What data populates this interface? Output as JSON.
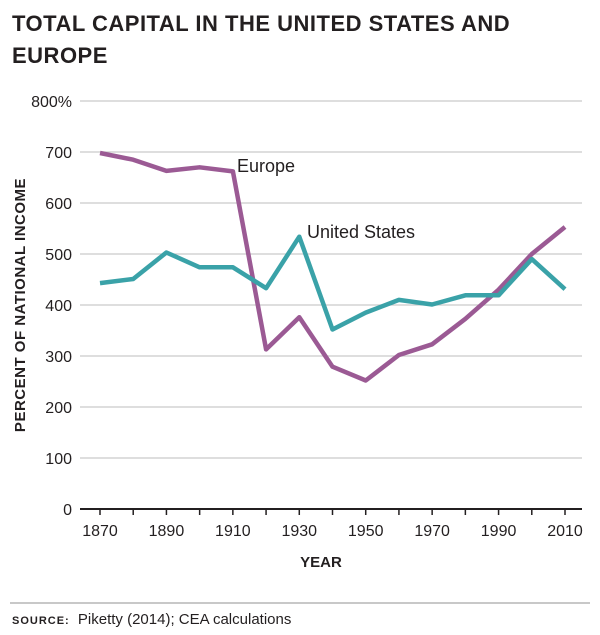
{
  "title": "TOTAL CAPITAL IN THE UNITED STATES AND EUROPE",
  "source_label": "SOURCE:",
  "source_text": "Piketty (2014); CEA calculations",
  "chart_data": {
    "type": "line",
    "title": "TOTAL CAPITAL IN THE UNITED STATES AND EUROPE",
    "xlabel": "YEAR",
    "ylabel": "PERCENT OF NATIONAL INCOME",
    "x": [
      1870,
      1880,
      1890,
      1900,
      1910,
      1920,
      1930,
      1940,
      1950,
      1960,
      1970,
      1980,
      1990,
      2000,
      2010
    ],
    "xticks": [
      "1870",
      "1890",
      "1910",
      "1930",
      "1950",
      "1970",
      "1990",
      "2010"
    ],
    "xlim": [
      1870,
      2010
    ],
    "ylim": [
      0,
      800
    ],
    "yticks": [
      "0",
      "100",
      "200",
      "300",
      "400",
      "500",
      "600",
      "700",
      "800%"
    ],
    "grid": true,
    "series": [
      {
        "name": "Europe",
        "color": "#9b5a94",
        "values": [
          698,
          685,
          663,
          670,
          662,
          313,
          376,
          279,
          252,
          302,
          323,
          373,
          430,
          500,
          553
        ]
      },
      {
        "name": "United States",
        "color": "#3aa2a8",
        "values": [
          443,
          451,
          503,
          474,
          474,
          433,
          534,
          352,
          385,
          410,
          401,
          419,
          419,
          490,
          431
        ]
      }
    ]
  }
}
